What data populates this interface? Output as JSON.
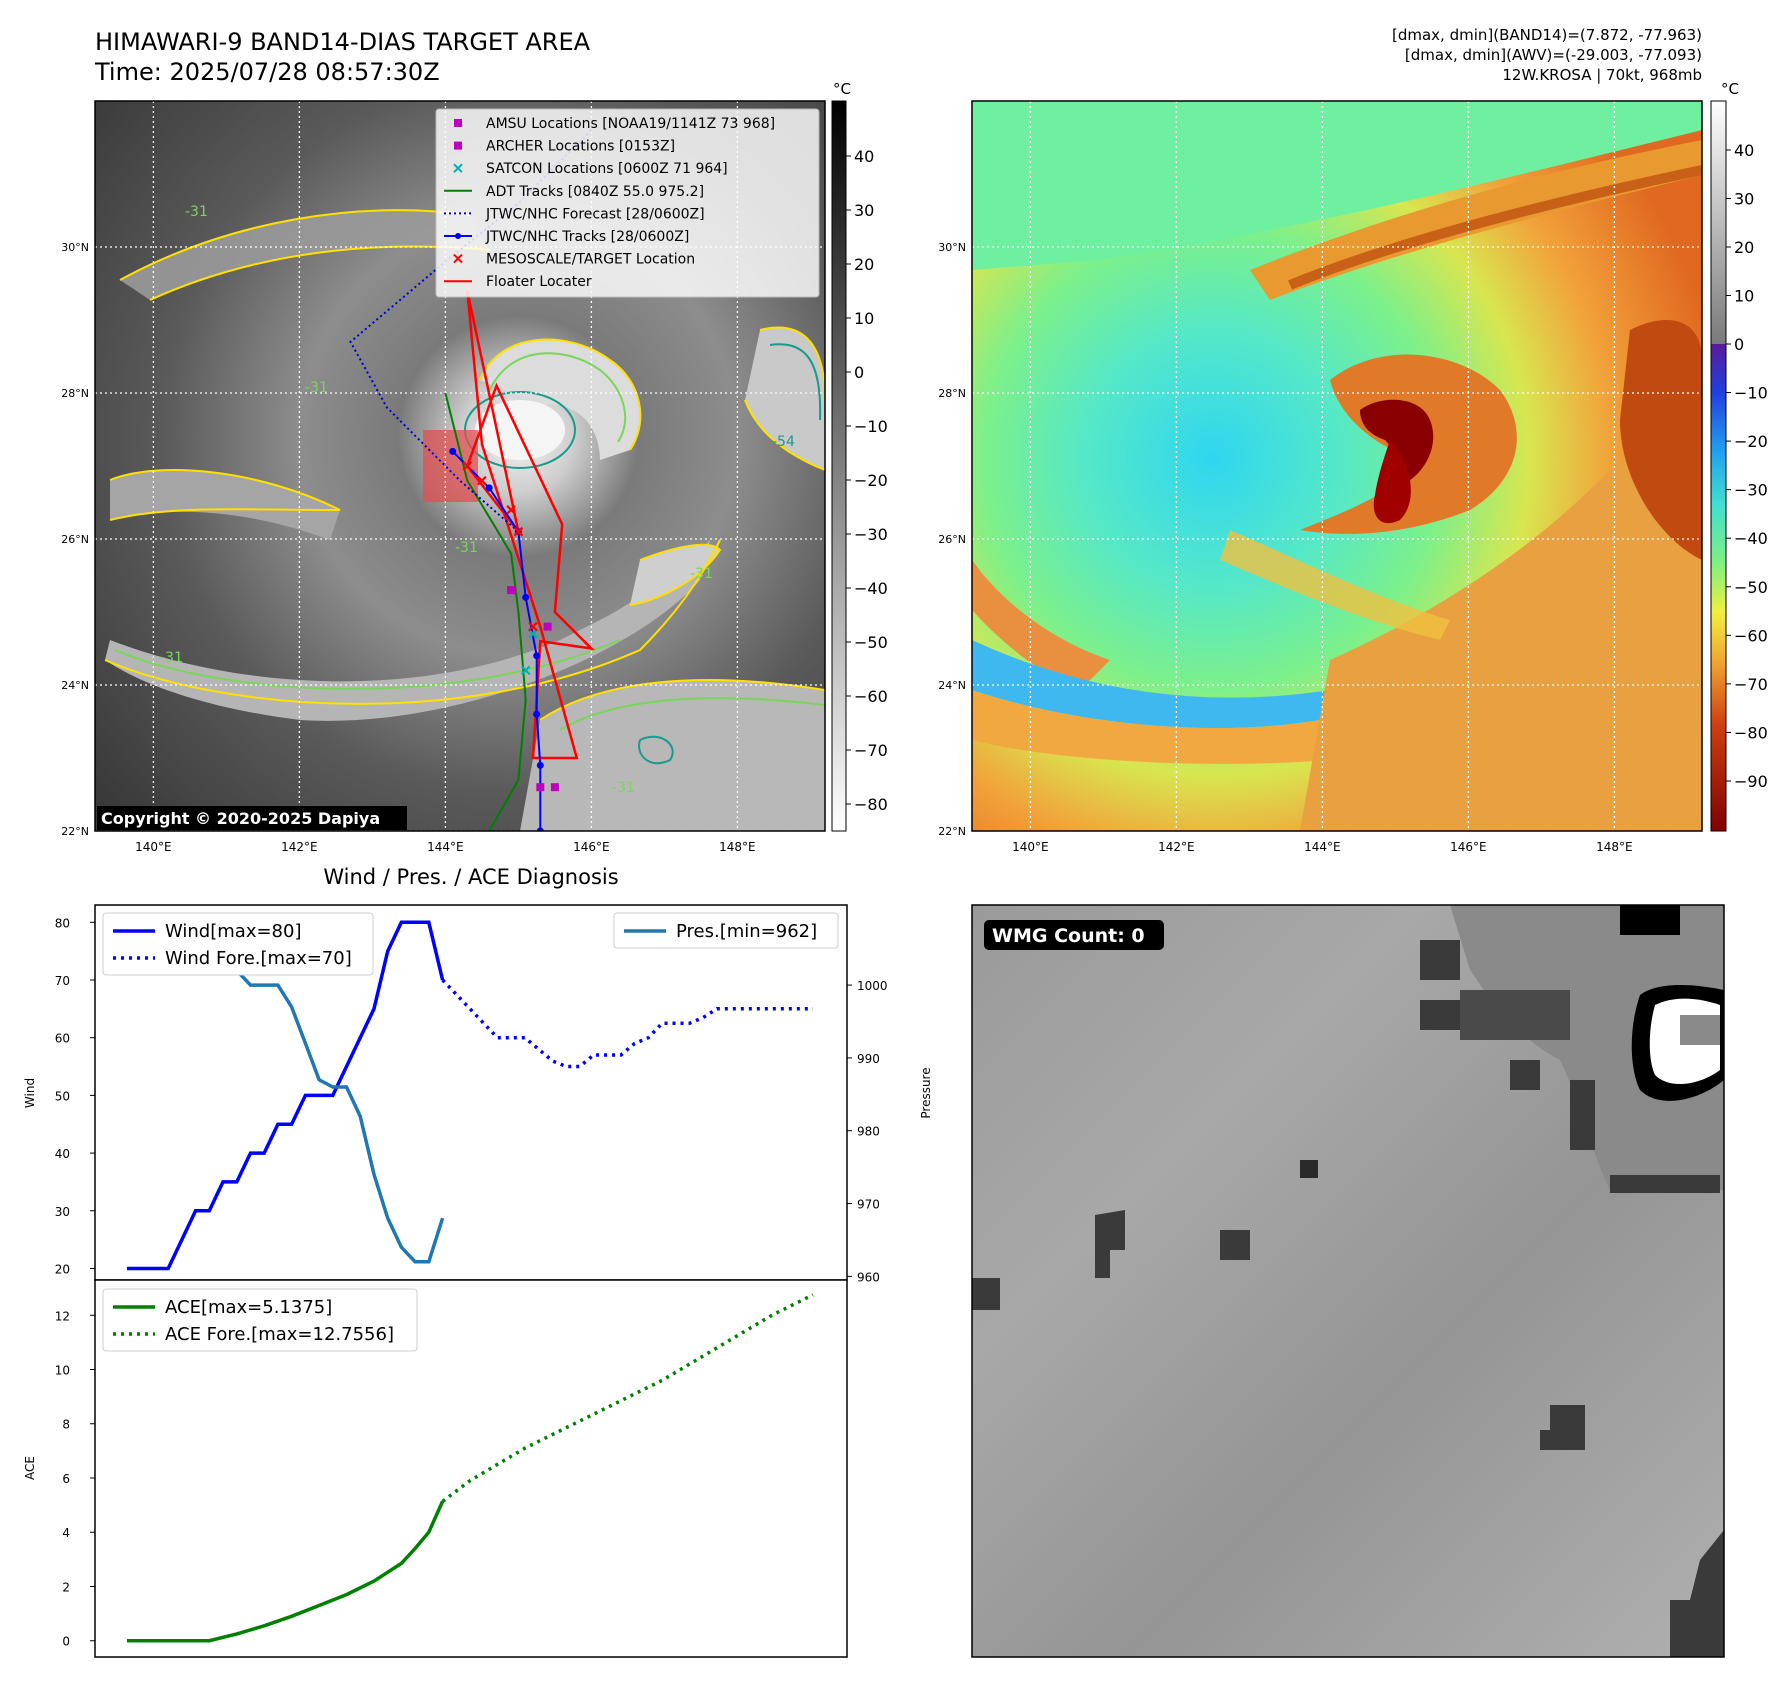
{
  "header": {
    "title": "HIMAWARI-9 BAND14-DIAS TARGET AREA",
    "time": "Time: 2025/07/28 08:57:30Z",
    "info": [
      "[dmax, dmin](BAND14)=(7.872, -77.963)",
      "[dmax, dmin](AWV)=(-29.003, -77.093)",
      "12W.KROSA | 70kt, 968mb"
    ]
  },
  "maps": {
    "lat_labels": [
      "30°N",
      "28°N",
      "26°N",
      "24°N",
      "22°N"
    ],
    "lat_values": [
      30,
      28,
      26,
      24,
      22
    ],
    "lon_labels": [
      "140°E",
      "142°E",
      "144°E",
      "146°E",
      "148°E"
    ],
    "lon_values": [
      140,
      142,
      144,
      146,
      148
    ],
    "lon_range": [
      139.2,
      149.2
    ],
    "lat_range": [
      22,
      32
    ],
    "colorbar_unit": "°C",
    "left_colorbar_ticks": [
      40,
      30,
      20,
      10,
      0,
      -10,
      -20,
      -30,
      -40,
      -50,
      -60,
      -70,
      -80
    ],
    "left_colorbar_tick_labels": [
      "40",
      "30",
      "20",
      "10",
      "0",
      "−10",
      "−20",
      "−30",
      "−40",
      "−50",
      "−60",
      "−70",
      "−80"
    ],
    "right_colorbar_ticks": [
      40,
      30,
      20,
      10,
      0,
      -10,
      -20,
      -30,
      -40,
      -50,
      -60,
      -70,
      -80,
      -90
    ],
    "right_colorbar_tick_labels": [
      "40",
      "30",
      "20",
      "10",
      "0",
      "−10",
      "−20",
      "−30",
      "−40",
      "−50",
      "−60",
      "−70",
      "−80",
      "−90"
    ],
    "contour_labels": [
      "-31",
      "-31",
      "-31",
      "-31",
      "-54",
      "-31",
      "-31"
    ],
    "copyright": "Copyright © 2020-2025 Dapiya",
    "legend": [
      {
        "label": "AMSU Locations [NOAA19/1141Z 73 968]",
        "marker": "square",
        "color": "#c000c0"
      },
      {
        "label": "ARCHER Locations [0153Z]",
        "marker": "square",
        "color": "#c000c0"
      },
      {
        "label": "SATCON Locations [0600Z 71 964]",
        "marker": "x",
        "color": "#00b0b0"
      },
      {
        "label": "ADT Tracks [0840Z 55.0 975.2]",
        "marker": "line",
        "color": "#008000"
      },
      {
        "label": "JTWC/NHC Forecast [28/0600Z]",
        "marker": "dotted",
        "color": "#0000ff"
      },
      {
        "label": "JTWC/NHC Tracks [28/0600Z]",
        "marker": "line-dot",
        "color": "#0000ff"
      },
      {
        "label": "MESOSCALE/TARGET Location",
        "marker": "x",
        "color": "#ff0000"
      },
      {
        "label": "Floater Locater",
        "marker": "line",
        "color": "#ff0000"
      }
    ],
    "tracks": {
      "jtwc_track": [
        [
          145.3,
          22.0
        ],
        [
          145.3,
          22.9
        ],
        [
          145.25,
          23.6
        ],
        [
          145.25,
          24.4
        ],
        [
          145.1,
          25.2
        ],
        [
          145.0,
          26.1
        ],
        [
          144.6,
          26.7
        ],
        [
          144.1,
          27.2
        ]
      ],
      "jtwc_forecast": [
        [
          145.0,
          26.1
        ],
        [
          144.2,
          26.8
        ],
        [
          143.2,
          27.8
        ],
        [
          142.7,
          28.7
        ],
        [
          144.0,
          29.8
        ],
        [
          145.0,
          30.6
        ],
        [
          146.0,
          31.6
        ]
      ],
      "adt_track": [
        [
          144.6,
          22.0
        ],
        [
          145.0,
          22.7
        ],
        [
          145.1,
          23.8
        ],
        [
          145.0,
          25.0
        ],
        [
          144.9,
          25.8
        ],
        [
          144.3,
          26.8
        ],
        [
          144.0,
          28.0
        ]
      ],
      "floater": [
        [
          144.3,
          29.4
        ],
        [
          145.0,
          26.1
        ],
        [
          144.3,
          27.0
        ],
        [
          144.7,
          28.1
        ],
        [
          145.6,
          26.2
        ],
        [
          145.5,
          25.0
        ],
        [
          146.0,
          24.5
        ],
        [
          145.3,
          24.6
        ],
        [
          145.2,
          23.0
        ],
        [
          145.8,
          23.0
        ],
        [
          145.3,
          24.8
        ],
        [
          144.5,
          27.3
        ],
        [
          144.3,
          29.4
        ]
      ],
      "amsu": [
        [
          144.9,
          25.3
        ],
        [
          145.5,
          22.6
        ]
      ],
      "archer": [
        [
          145.3,
          22.6
        ],
        [
          145.4,
          24.8
        ]
      ],
      "satcon": [
        [
          145.2,
          24.7
        ],
        [
          145.1,
          24.2
        ]
      ],
      "target": [
        [
          144.3,
          27.0
        ],
        [
          144.5,
          26.8
        ],
        [
          144.9,
          26.4
        ],
        [
          145.0,
          26.1
        ],
        [
          145.2,
          24.8
        ]
      ]
    },
    "colors": {
      "track_blue": "#0000ff",
      "forecast_blue": "#0000cc",
      "adt_green": "#008000",
      "floater_red": "#ff0000",
      "amsu_magenta": "#c000c0",
      "satcon_cyan": "#00b0b0",
      "contour_yellow": "#ffe000",
      "contour_green": "#7ad65a",
      "contour_teal": "#1a9a8a"
    }
  },
  "diagnosis_title": "Wind / Pres. / ACE Diagnosis",
  "wmg_label": "WMG Count: 0",
  "chart_data": [
    {
      "type": "line",
      "title": "Wind / Pres. / ACE Diagnosis",
      "ylabel": "Wind",
      "y2label": "Pressure",
      "x": [
        0,
        1,
        2,
        3,
        4,
        5,
        6,
        7,
        8,
        9,
        10,
        11,
        12,
        13,
        14,
        15,
        16,
        17,
        18,
        19,
        20,
        21,
        22,
        23,
        24,
        25,
        26,
        27,
        28,
        29,
        30,
        31,
        32,
        33,
        34,
        35,
        36,
        37,
        38,
        39,
        40,
        41,
        42,
        43,
        44,
        45,
        46,
        47,
        48,
        49,
        50
      ],
      "ylim": [
        18,
        83
      ],
      "y2lim": [
        959.5,
        1011
      ],
      "yticks": [
        20,
        30,
        40,
        50,
        60,
        70,
        80
      ],
      "y2ticks": [
        960,
        970,
        980,
        990,
        1000
      ],
      "series": [
        {
          "name": "Wind[max=80]",
          "axis": "left",
          "style": "solid",
          "color": "#0000ff",
          "x": [
            0,
            1,
            2,
            3,
            4,
            5,
            6,
            7,
            8,
            9,
            10,
            11,
            12,
            13,
            14,
            15,
            16,
            17,
            18,
            19,
            20,
            21,
            22,
            23
          ],
          "values": [
            20,
            20,
            20,
            20,
            25,
            30,
            30,
            35,
            35,
            40,
            40,
            45,
            45,
            50,
            50,
            50,
            55,
            60,
            65,
            75,
            80,
            80,
            80,
            70
          ]
        },
        {
          "name": "Wind Fore.[max=70]",
          "axis": "left",
          "style": "dotted",
          "color": "#0000ff",
          "x": [
            23,
            24,
            25,
            26,
            27,
            28,
            29,
            30,
            31,
            32,
            33,
            34,
            35,
            36,
            37,
            38,
            39,
            40,
            41,
            42,
            43,
            44,
            45,
            46,
            47,
            48,
            49,
            50
          ],
          "values": [
            70,
            67.5,
            65,
            62.5,
            60,
            60,
            60,
            58,
            56,
            55,
            55,
            57,
            57,
            57,
            59,
            60,
            62.5,
            62.5,
            62.5,
            63.5,
            65,
            65,
            65,
            65,
            65,
            65,
            65,
            65
          ]
        },
        {
          "name": "Pres.[min=962]",
          "axis": "right",
          "style": "solid",
          "color": "#1f77b4",
          "x": [
            0,
            1,
            2,
            3,
            4,
            5,
            6,
            7,
            8,
            9,
            10,
            11,
            12,
            13,
            14,
            15,
            16,
            17,
            18,
            19,
            20,
            21,
            22,
            23
          ],
          "values": [
            1008,
            1008,
            1008,
            1006,
            1006,
            1005,
            1005,
            1002,
            1002,
            1000,
            1000,
            1000,
            997,
            992,
            987,
            986,
            986,
            982,
            974,
            968,
            964,
            962,
            962,
            968
          ]
        }
      ]
    },
    {
      "type": "line",
      "ylabel": "ACE",
      "x": [
        0,
        1,
        2,
        3,
        4,
        5,
        6,
        7,
        8,
        9,
        10,
        11,
        12,
        13,
        14,
        15,
        16,
        17,
        18,
        19,
        20,
        21,
        22,
        23,
        24,
        25,
        26,
        27,
        28,
        29,
        30,
        31,
        32,
        33,
        34,
        35,
        36,
        37,
        38,
        39,
        40,
        41,
        42,
        43,
        44,
        45,
        46,
        47,
        48,
        49,
        50
      ],
      "ylim": [
        -0.6,
        13.3
      ],
      "yticks": [
        0,
        2,
        4,
        6,
        8,
        10,
        12
      ],
      "series": [
        {
          "name": "ACE[max=5.1375]",
          "style": "solid",
          "color": "#008000",
          "x": [
            0,
            2,
            4,
            6,
            8,
            10,
            12,
            14,
            16,
            18,
            20,
            21,
            22,
            23
          ],
          "values": [
            0,
            0,
            0,
            0,
            0.25,
            0.55,
            0.9,
            1.3,
            1.7,
            2.2,
            2.85,
            3.4,
            4.0,
            5.1375
          ]
        },
        {
          "name": "ACE Fore.[max=12.7556]",
          "style": "dotted",
          "color": "#008000",
          "x": [
            23,
            25,
            27,
            29,
            31,
            33,
            35,
            37,
            39,
            41,
            43,
            45,
            47,
            50
          ],
          "values": [
            5.1375,
            5.9,
            6.5,
            7.1,
            7.6,
            8.1,
            8.6,
            9.1,
            9.6,
            10.2,
            10.8,
            11.4,
            12.0,
            12.7556
          ]
        }
      ]
    }
  ]
}
